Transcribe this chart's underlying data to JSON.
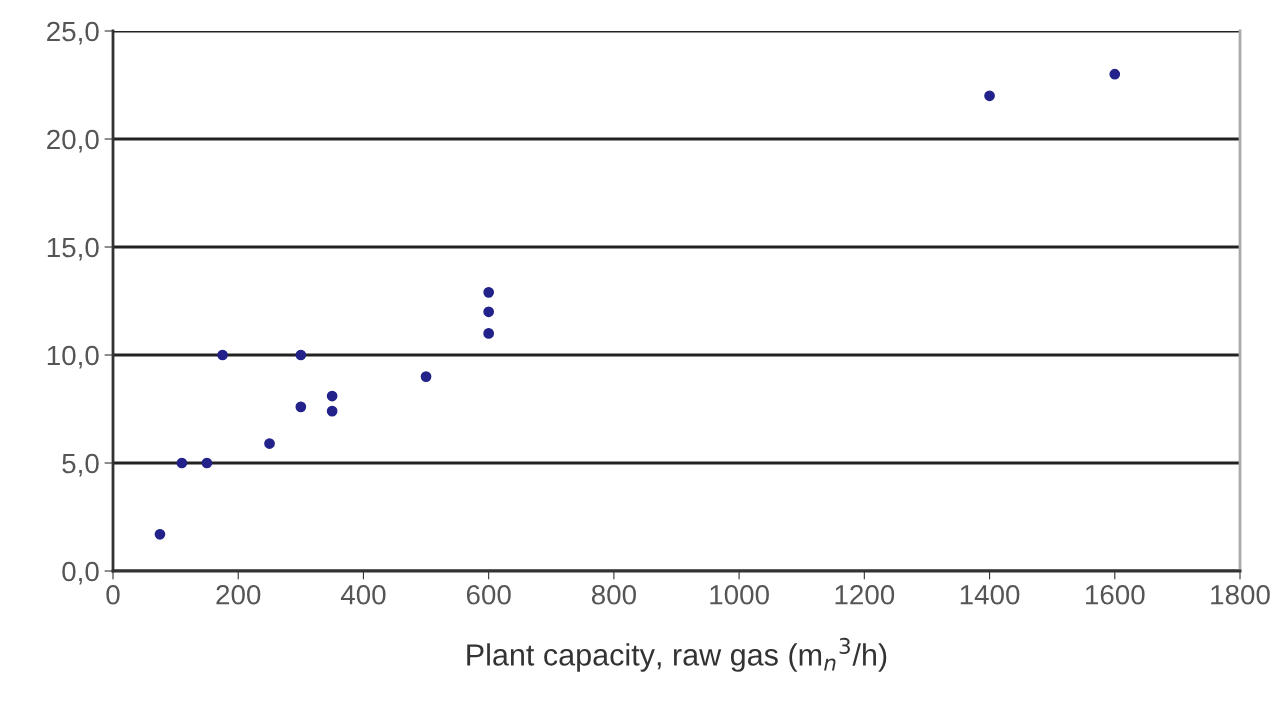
{
  "chart_data": {
    "type": "scatter",
    "xlabel": "Plant capacity, raw gas (m$_{n}$$^{3}$/h)",
    "x": [
      75,
      110,
      150,
      175,
      250,
      300,
      300,
      350,
      350,
      500,
      600,
      600,
      600,
      1400,
      1600
    ],
    "series": [
      {
        "color": "#22228a",
        "values": [
          1.7,
          5.0,
          5.0,
          10.0,
          5.9,
          10.0,
          7.6,
          8.1,
          7.4,
          9.0,
          12.9,
          12.0,
          11.0,
          22.0,
          23.0
        ]
      }
    ],
    "xlim": [
      0,
      1800
    ],
    "xticks": [
      0,
      200,
      400,
      600,
      800,
      1000,
      1200,
      1400,
      1600,
      1800
    ],
    "ylim": [
      0,
      25
    ],
    "yticks": [
      {
        "value": 0,
        "label": "0,0"
      },
      {
        "value": 5,
        "label": "5,0"
      },
      {
        "value": 10,
        "label": "10,0"
      },
      {
        "value": 15,
        "label": "15,0"
      },
      {
        "value": 20,
        "label": "20,0"
      },
      {
        "value": 25,
        "label": "25,0"
      }
    ],
    "grid": "y",
    "marker": "circle"
  }
}
